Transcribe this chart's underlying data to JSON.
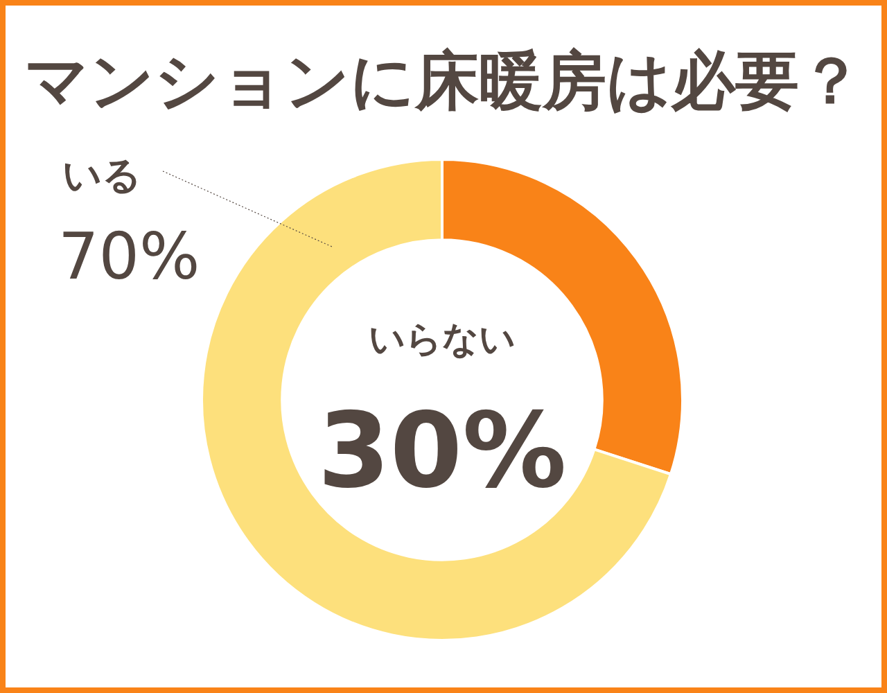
{
  "chart_data": {
    "type": "donut",
    "title": "マンションに床暖房は必要？",
    "categories": [
      "いらない",
      "いる"
    ],
    "values": [
      30,
      70
    ],
    "colors": [
      "#f98318",
      "#fde07c"
    ],
    "value_labels": [
      "30%",
      "70%"
    ]
  }
}
